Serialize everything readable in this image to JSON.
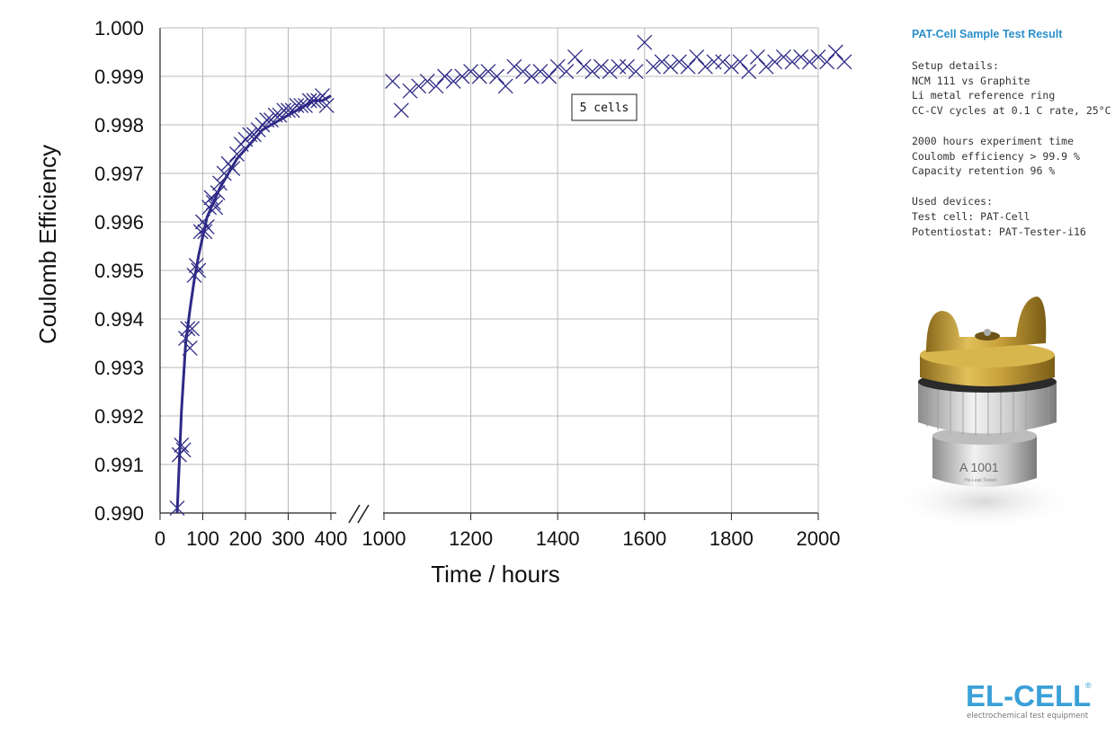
{
  "chart_data": {
    "type": "scatter",
    "xlabel": "Time / hours",
    "ylabel": "Coulomb Efficiency",
    "ylim": [
      0.99,
      1.0
    ],
    "yticks": [
      "0.990",
      "0.991",
      "0.992",
      "0.993",
      "0.994",
      "0.995",
      "0.996",
      "0.997",
      "0.998",
      "0.999",
      "1.000"
    ],
    "x_axis_broken": true,
    "xlim_segment1": [
      0,
      400
    ],
    "xlim_segment2": [
      1000,
      2000
    ],
    "xticks_segment1": [
      "0",
      "100",
      "200",
      "300",
      "400"
    ],
    "xticks_segment2": [
      "1000",
      "1200",
      "1400",
      "1600",
      "1800",
      "2000"
    ],
    "grid": true,
    "annotation": "5 cells",
    "marker": "x",
    "color": "#2e2a86",
    "series": [
      {
        "x": [
          40,
          45,
          50,
          55,
          60,
          65,
          70,
          75,
          80,
          85,
          90,
          95,
          100,
          105,
          110,
          115,
          120,
          125,
          130,
          135,
          140,
          150,
          160,
          170,
          180,
          190,
          200,
          210,
          220,
          230,
          240,
          250,
          260,
          270,
          280,
          290,
          300,
          310,
          320,
          330,
          340,
          350,
          360,
          370,
          380,
          390,
          1020,
          1040,
          1060,
          1080,
          1100,
          1120,
          1140,
          1160,
          1180,
          1200,
          1220,
          1240,
          1260,
          1280,
          1300,
          1320,
          1340,
          1360,
          1380,
          1400,
          1420,
          1440,
          1460,
          1480,
          1500,
          1520,
          1540,
          1560,
          1580,
          1600,
          1620,
          1640,
          1660,
          1680,
          1700,
          1720,
          1740,
          1760,
          1780,
          1800,
          1820,
          1840,
          1860,
          1880,
          1900,
          1920,
          1940,
          1960,
          1980,
          2000,
          2020,
          2040,
          2060
        ],
        "y": [
          0.9901,
          0.9912,
          0.9914,
          0.9913,
          0.9936,
          0.9938,
          0.9934,
          0.9938,
          0.9949,
          0.9951,
          0.995,
          0.9958,
          0.996,
          0.9958,
          0.9959,
          0.9963,
          0.9965,
          0.9964,
          0.9963,
          0.9966,
          0.9968,
          0.997,
          0.9972,
          0.9971,
          0.9974,
          0.9976,
          0.9977,
          0.9978,
          0.9978,
          0.9979,
          0.998,
          0.9981,
          0.9981,
          0.9982,
          0.9982,
          0.9983,
          0.9983,
          0.9983,
          0.9984,
          0.9984,
          0.9984,
          0.9985,
          0.9985,
          0.9985,
          0.9986,
          0.9984,
          0.9989,
          0.9983,
          0.9987,
          0.9988,
          0.9989,
          0.9988,
          0.999,
          0.9989,
          0.999,
          0.9991,
          0.999,
          0.9991,
          0.999,
          0.9988,
          0.9992,
          0.9991,
          0.999,
          0.9991,
          0.999,
          0.9992,
          0.9991,
          0.9994,
          0.9992,
          0.9991,
          0.9992,
          0.9991,
          0.9992,
          0.9992,
          0.9991,
          0.9997,
          0.9992,
          0.9993,
          0.9992,
          0.9993,
          0.9992,
          0.9994,
          0.9992,
          0.9993,
          0.9993,
          0.9992,
          0.9993,
          0.9991,
          0.9994,
          0.9992,
          0.9993,
          0.9994,
          0.9993,
          0.9994,
          0.9993,
          0.9994,
          0.9993,
          0.9995,
          0.9993
        ]
      }
    ],
    "fit_line": {
      "x": [
        40,
        50,
        60,
        70,
        80,
        90,
        100,
        110,
        120,
        140,
        160,
        180,
        200,
        220,
        240,
        260,
        280,
        300,
        320,
        340,
        360,
        380,
        400
      ],
      "y": [
        0.99,
        0.9921,
        0.9935,
        0.9942,
        0.9948,
        0.9953,
        0.9957,
        0.9961,
        0.9963,
        0.9967,
        0.997,
        0.9973,
        0.9975,
        0.9977,
        0.9979,
        0.998,
        0.9981,
        0.9982,
        0.9983,
        0.9984,
        0.9985,
        0.9985,
        0.9986
      ]
    }
  },
  "panel": {
    "title": "PAT-Cell Sample Test Result",
    "setup": [
      "Setup details:",
      "NCM 111 vs Graphite",
      "Li metal reference ring",
      "CC-CV cycles at 0.1 C rate, 25°C"
    ],
    "results": [
      "2000 hours experiment time",
      "Coulomb efficiency > 99.9 %",
      "Capacity retention 96 %"
    ],
    "devices": [
      "Used devices:",
      "Test cell: PAT-Cell",
      "Potentiostat: PAT-Tester-i16"
    ]
  },
  "photo": {
    "engraving": "A 1001",
    "engraving_small": "He-Leak Tested",
    "icon": "pat-cell-product-photo"
  },
  "logo": {
    "brand": "EL-CELL",
    "registered": "®",
    "tagline": "electrochemical test equipment",
    "color": "#3aa0d8"
  }
}
